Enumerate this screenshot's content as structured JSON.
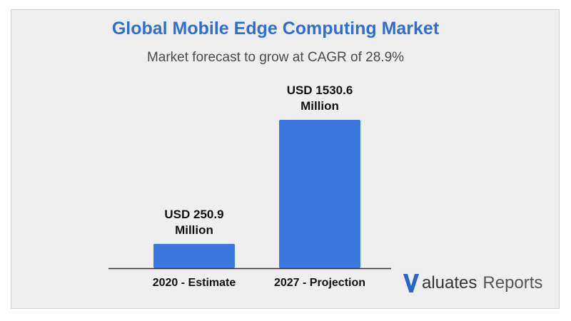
{
  "header": {
    "title": "Global Mobile Edge Computing Market",
    "subtitle": "Market forecast to grow at CAGR of 28.9%"
  },
  "logo": {
    "word": "aluates",
    "suffix": "Reports"
  },
  "colors": {
    "bar": "#3d77e0",
    "title": "#2f6fd0",
    "logo_v": "#2a64c8"
  },
  "chart_data": {
    "type": "bar",
    "title": "Global Mobile Edge Computing Market",
    "subtitle": "Market forecast to grow at CAGR of 28.9%",
    "categories": [
      "2020 - Estimate",
      "2027 - Projection"
    ],
    "values": [
      250.9,
      1530.6
    ],
    "value_labels": [
      [
        "USD 250.9",
        "Million"
      ],
      [
        "USD 1530.6",
        "Million"
      ]
    ],
    "unit": "USD Million",
    "xlabel": "",
    "ylabel": "",
    "grid": false,
    "legend": "none"
  }
}
